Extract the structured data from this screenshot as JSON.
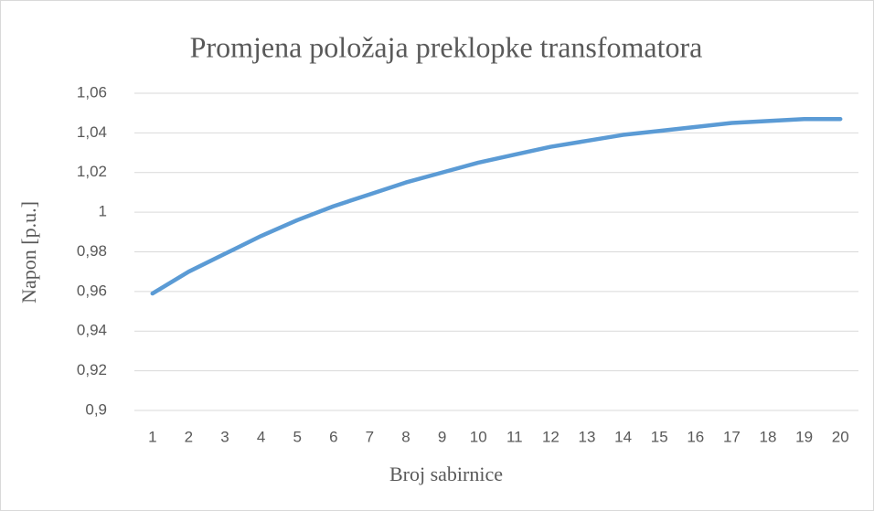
{
  "chart_data": {
    "type": "line",
    "title": "Promjena položaja preklopke transfomatora",
    "x_label": "Broj sabirnice",
    "y_label": "Napon [p.u.]",
    "categories": [
      "1",
      "2",
      "3",
      "4",
      "5",
      "6",
      "7",
      "8",
      "9",
      "10",
      "11",
      "12",
      "13",
      "14",
      "15",
      "16",
      "17",
      "18",
      "19",
      "20"
    ],
    "values": [
      0.959,
      0.97,
      0.979,
      0.988,
      0.996,
      1.003,
      1.009,
      1.015,
      1.02,
      1.025,
      1.029,
      1.033,
      1.036,
      1.039,
      1.041,
      1.043,
      1.045,
      1.046,
      1.047,
      1.047
    ],
    "color": "#5b9bd5",
    "ylim": [
      0.9,
      1.06
    ],
    "yticks": [
      {
        "value": 0.9,
        "label": "0,9"
      },
      {
        "value": 0.92,
        "label": "0,92"
      },
      {
        "value": 0.94,
        "label": "0,94"
      },
      {
        "value": 0.96,
        "label": "0,96"
      },
      {
        "value": 0.98,
        "label": "0,98"
      },
      1,
      {
        "value": 1.02,
        "label": "1,02"
      },
      {
        "value": 1.04,
        "label": "1,04"
      },
      {
        "value": 1.06,
        "label": "1,06"
      }
    ],
    "grid": true
  }
}
